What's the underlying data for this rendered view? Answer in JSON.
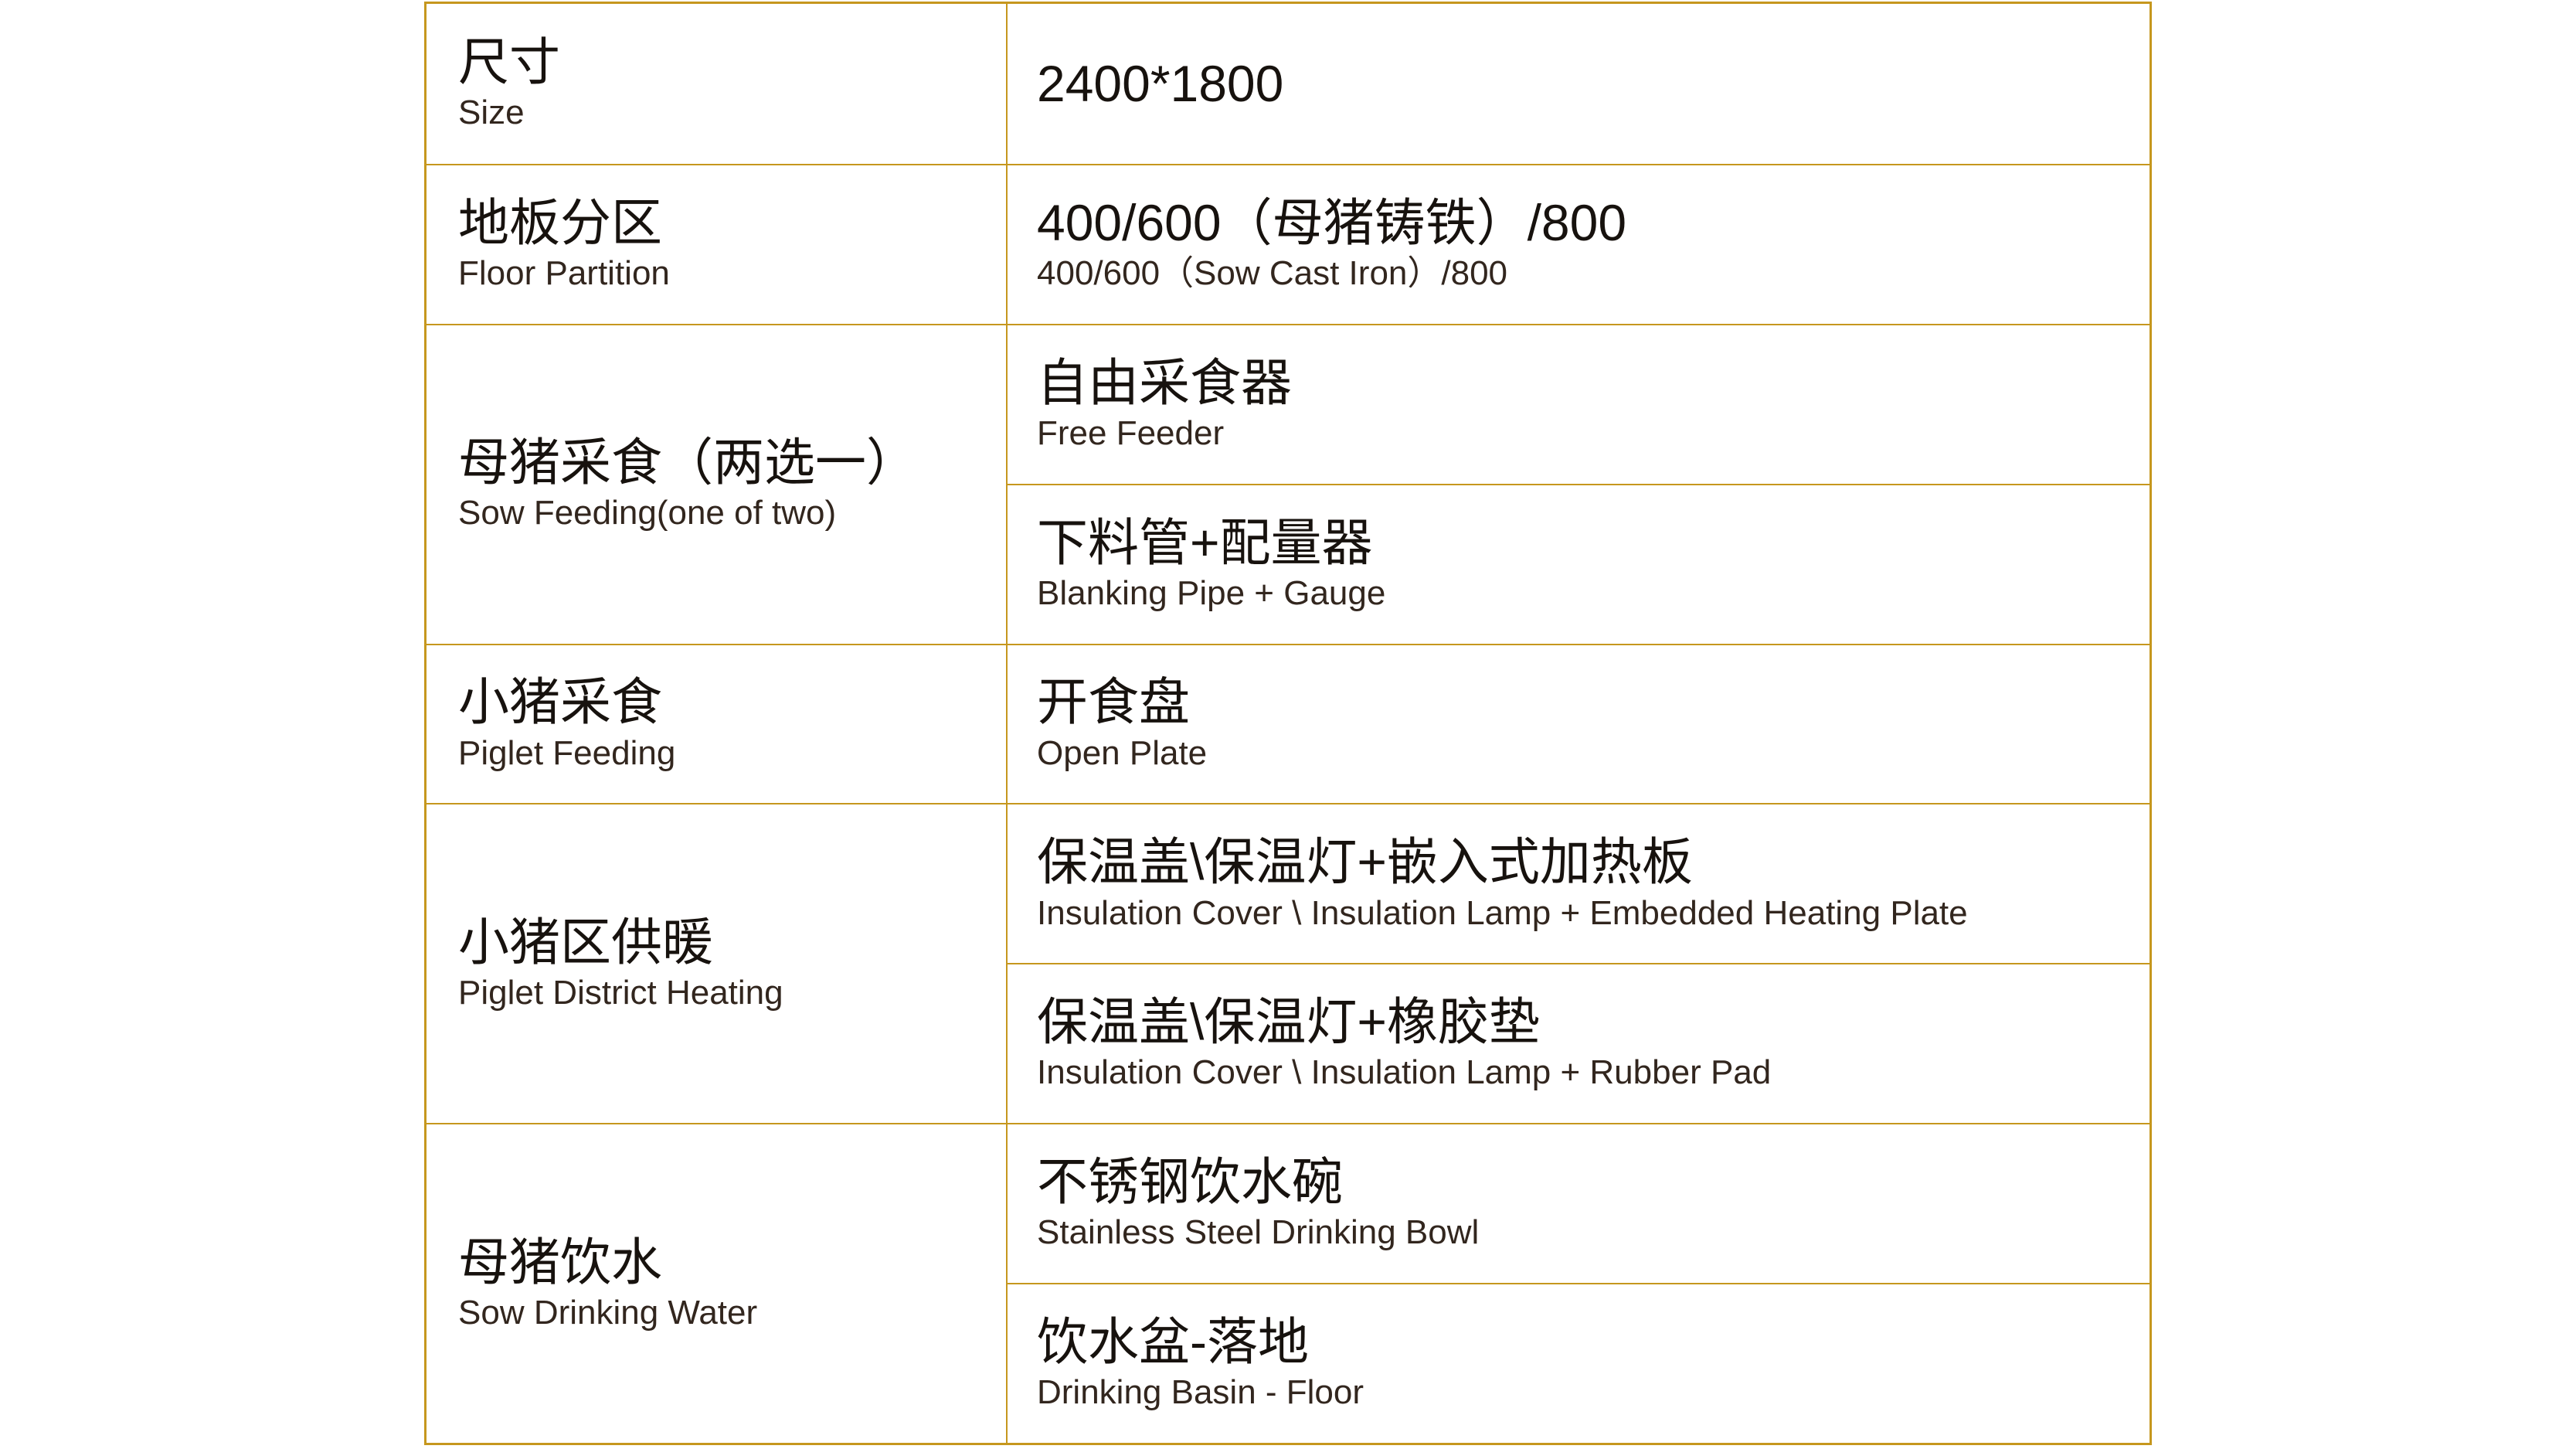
{
  "table": {
    "border_color": "#C6971E",
    "text_color_primary": "#17120E",
    "text_color_secondary": "#32261E",
    "rows": [
      {
        "label_zh": "尺寸",
        "label_en": "Size",
        "values": [
          {
            "zh": "2400*1800",
            "en": ""
          }
        ]
      },
      {
        "label_zh": "地板分区",
        "label_en": "Floor Partition",
        "values": [
          {
            "zh": "400/600（母猪铸铁）/800",
            "en": "400/600（Sow Cast Iron）/800"
          }
        ]
      },
      {
        "label_zh": "母猪采食（两选一）",
        "label_en": "Sow Feeding(one of two)",
        "values": [
          {
            "zh": "自由采食器",
            "en": "Free Feeder"
          },
          {
            "zh": "下料管+配量器",
            "en": "Blanking Pipe + Gauge"
          }
        ]
      },
      {
        "label_zh": "小猪采食",
        "label_en": "Piglet Feeding",
        "values": [
          {
            "zh": "开食盘",
            "en": "Open Plate"
          }
        ]
      },
      {
        "label_zh": "小猪区供暖",
        "label_en": "Piglet District Heating",
        "values": [
          {
            "zh": "保温盖\\保温灯+嵌入式加热板",
            "en": "Insulation Cover \\ Insulation Lamp + Embedded Heating Plate"
          },
          {
            "zh": "保温盖\\保温灯+橡胶垫",
            "en": "Insulation Cover \\ Insulation Lamp + Rubber Pad"
          }
        ]
      },
      {
        "label_zh": "母猪饮水",
        "label_en": "Sow Drinking Water",
        "values": [
          {
            "zh": "不锈钢饮水碗",
            "en": "Stainless Steel Drinking Bowl"
          },
          {
            "zh": "饮水盆-落地",
            "en": "Drinking Basin - Floor"
          }
        ]
      }
    ]
  }
}
